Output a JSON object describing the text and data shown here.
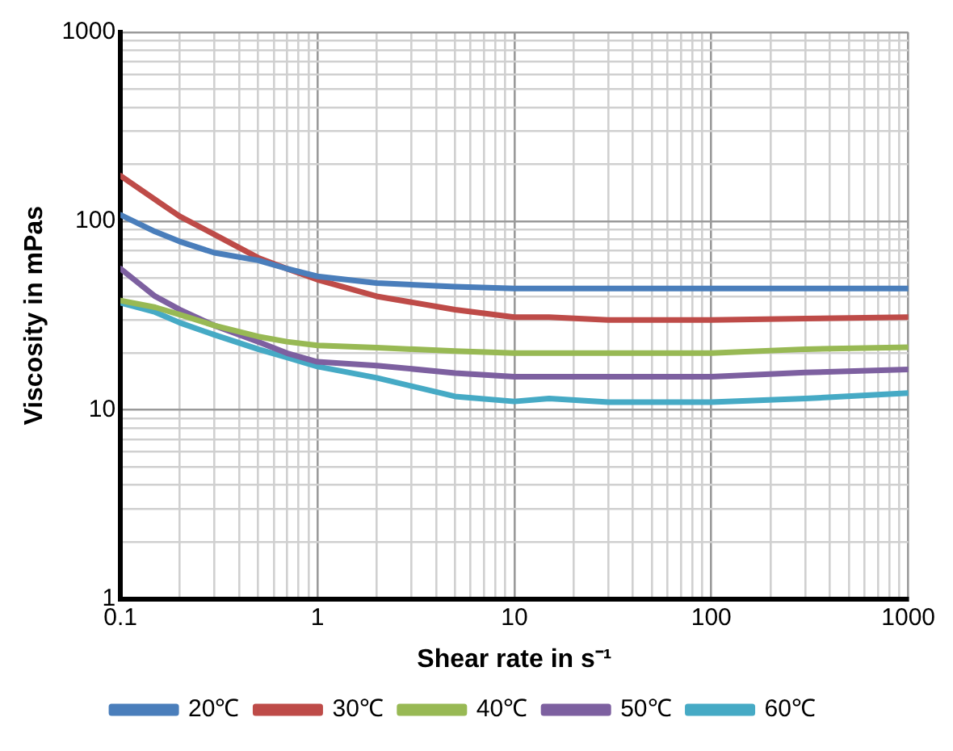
{
  "chart_data": {
    "type": "line",
    "xlabel": "Shear rate in s⁻¹",
    "ylabel": "Viscosity in mPas",
    "log": "xy",
    "grid": true,
    "legend": "bottom",
    "marker": "none",
    "line_style": "solid",
    "xlim": [
      0.1,
      1000
    ],
    "ylim": [
      1,
      1000
    ],
    "xticks": [
      0.1,
      {
        "value": 0.2,
        "label": null
      },
      {
        "value": 0.3,
        "label": null
      },
      {
        "value": 0.4,
        "label": null
      },
      {
        "value": 0.5,
        "label": null
      },
      {
        "value": 0.6,
        "label": null
      },
      {
        "value": 0.7,
        "label": null
      },
      {
        "value": 0.8,
        "label": null
      },
      {
        "value": 0.9,
        "label": null
      },
      1,
      {
        "value": 2,
        "label": null
      },
      {
        "value": 3,
        "label": null
      },
      {
        "value": 4,
        "label": null
      },
      {
        "value": 5,
        "label": null
      },
      {
        "value": 6,
        "label": null
      },
      {
        "value": 7,
        "label": null
      },
      {
        "value": 8,
        "label": null
      },
      {
        "value": 9,
        "label": null
      },
      10,
      {
        "value": 20,
        "label": null
      },
      {
        "value": 30,
        "label": null
      },
      {
        "value": 40,
        "label": null
      },
      {
        "value": 50,
        "label": null
      },
      {
        "value": 60,
        "label": null
      },
      {
        "value": 70,
        "label": null
      },
      {
        "value": 80,
        "label": null
      },
      {
        "value": 90,
        "label": null
      },
      100,
      {
        "value": 200,
        "label": null
      },
      {
        "value": 300,
        "label": null
      },
      {
        "value": 400,
        "label": null
      },
      {
        "value": 500,
        "label": null
      },
      {
        "value": 600,
        "label": null
      },
      {
        "value": 700,
        "label": null
      },
      {
        "value": 800,
        "label": null
      },
      {
        "value": 900,
        "label": null
      },
      1000
    ],
    "yticks": [
      1,
      {
        "value": 2,
        "label": null
      },
      {
        "value": 3,
        "label": null
      },
      {
        "value": 4,
        "label": null
      },
      {
        "value": 5,
        "label": null
      },
      {
        "value": 6,
        "label": null
      },
      {
        "value": 7,
        "label": null
      },
      {
        "value": 8,
        "label": null
      },
      {
        "value": 9,
        "label": null
      },
      10,
      {
        "value": 20,
        "label": null
      },
      {
        "value": 30,
        "label": null
      },
      {
        "value": 40,
        "label": null
      },
      {
        "value": 50,
        "label": null
      },
      {
        "value": 60,
        "label": null
      },
      {
        "value": 70,
        "label": null
      },
      {
        "value": 80,
        "label": null
      },
      {
        "value": 90,
        "label": null
      },
      100,
      {
        "value": 200,
        "label": null
      },
      {
        "value": 300,
        "label": null
      },
      {
        "value": 400,
        "label": null
      },
      {
        "value": 500,
        "label": null
      },
      {
        "value": 600,
        "label": null
      },
      {
        "value": 700,
        "label": null
      },
      {
        "value": 800,
        "label": null
      },
      {
        "value": 900,
        "label": null
      },
      1000
    ],
    "x": [
      0.1,
      0.15,
      0.2,
      0.3,
      0.5,
      0.7,
      1,
      2,
      5,
      10,
      15,
      30,
      100,
      300,
      1000
    ],
    "series": [
      {
        "name": "20℃",
        "color": "#4a7ebb",
        "values": [
          108,
          88,
          78,
          68,
          62,
          56,
          51,
          47,
          45,
          44,
          44,
          44,
          44,
          44,
          44
        ]
      },
      {
        "name": "30℃",
        "color": "#be4b48",
        "values": [
          174,
          130,
          106,
          85,
          64,
          56,
          49,
          40,
          34,
          31,
          31,
          30,
          30,
          30.5,
          31
        ]
      },
      {
        "name": "40℃",
        "color": "#98b954",
        "values": [
          38,
          35,
          32,
          28,
          24.5,
          23,
          22,
          21.4,
          20.5,
          20,
          20,
          20,
          20,
          21,
          21.5
        ]
      },
      {
        "name": "50℃",
        "color": "#7d60a0",
        "values": [
          56,
          40,
          34,
          28,
          23,
          20,
          18,
          17.2,
          15.7,
          15,
          15,
          15,
          15,
          15.8,
          16.4
        ]
      },
      {
        "name": "60℃",
        "color": "#46aac5",
        "values": [
          37,
          33,
          29,
          25,
          21,
          19,
          17,
          14.8,
          11.8,
          11.1,
          11.5,
          11,
          11,
          11.5,
          12.3
        ]
      }
    ]
  }
}
